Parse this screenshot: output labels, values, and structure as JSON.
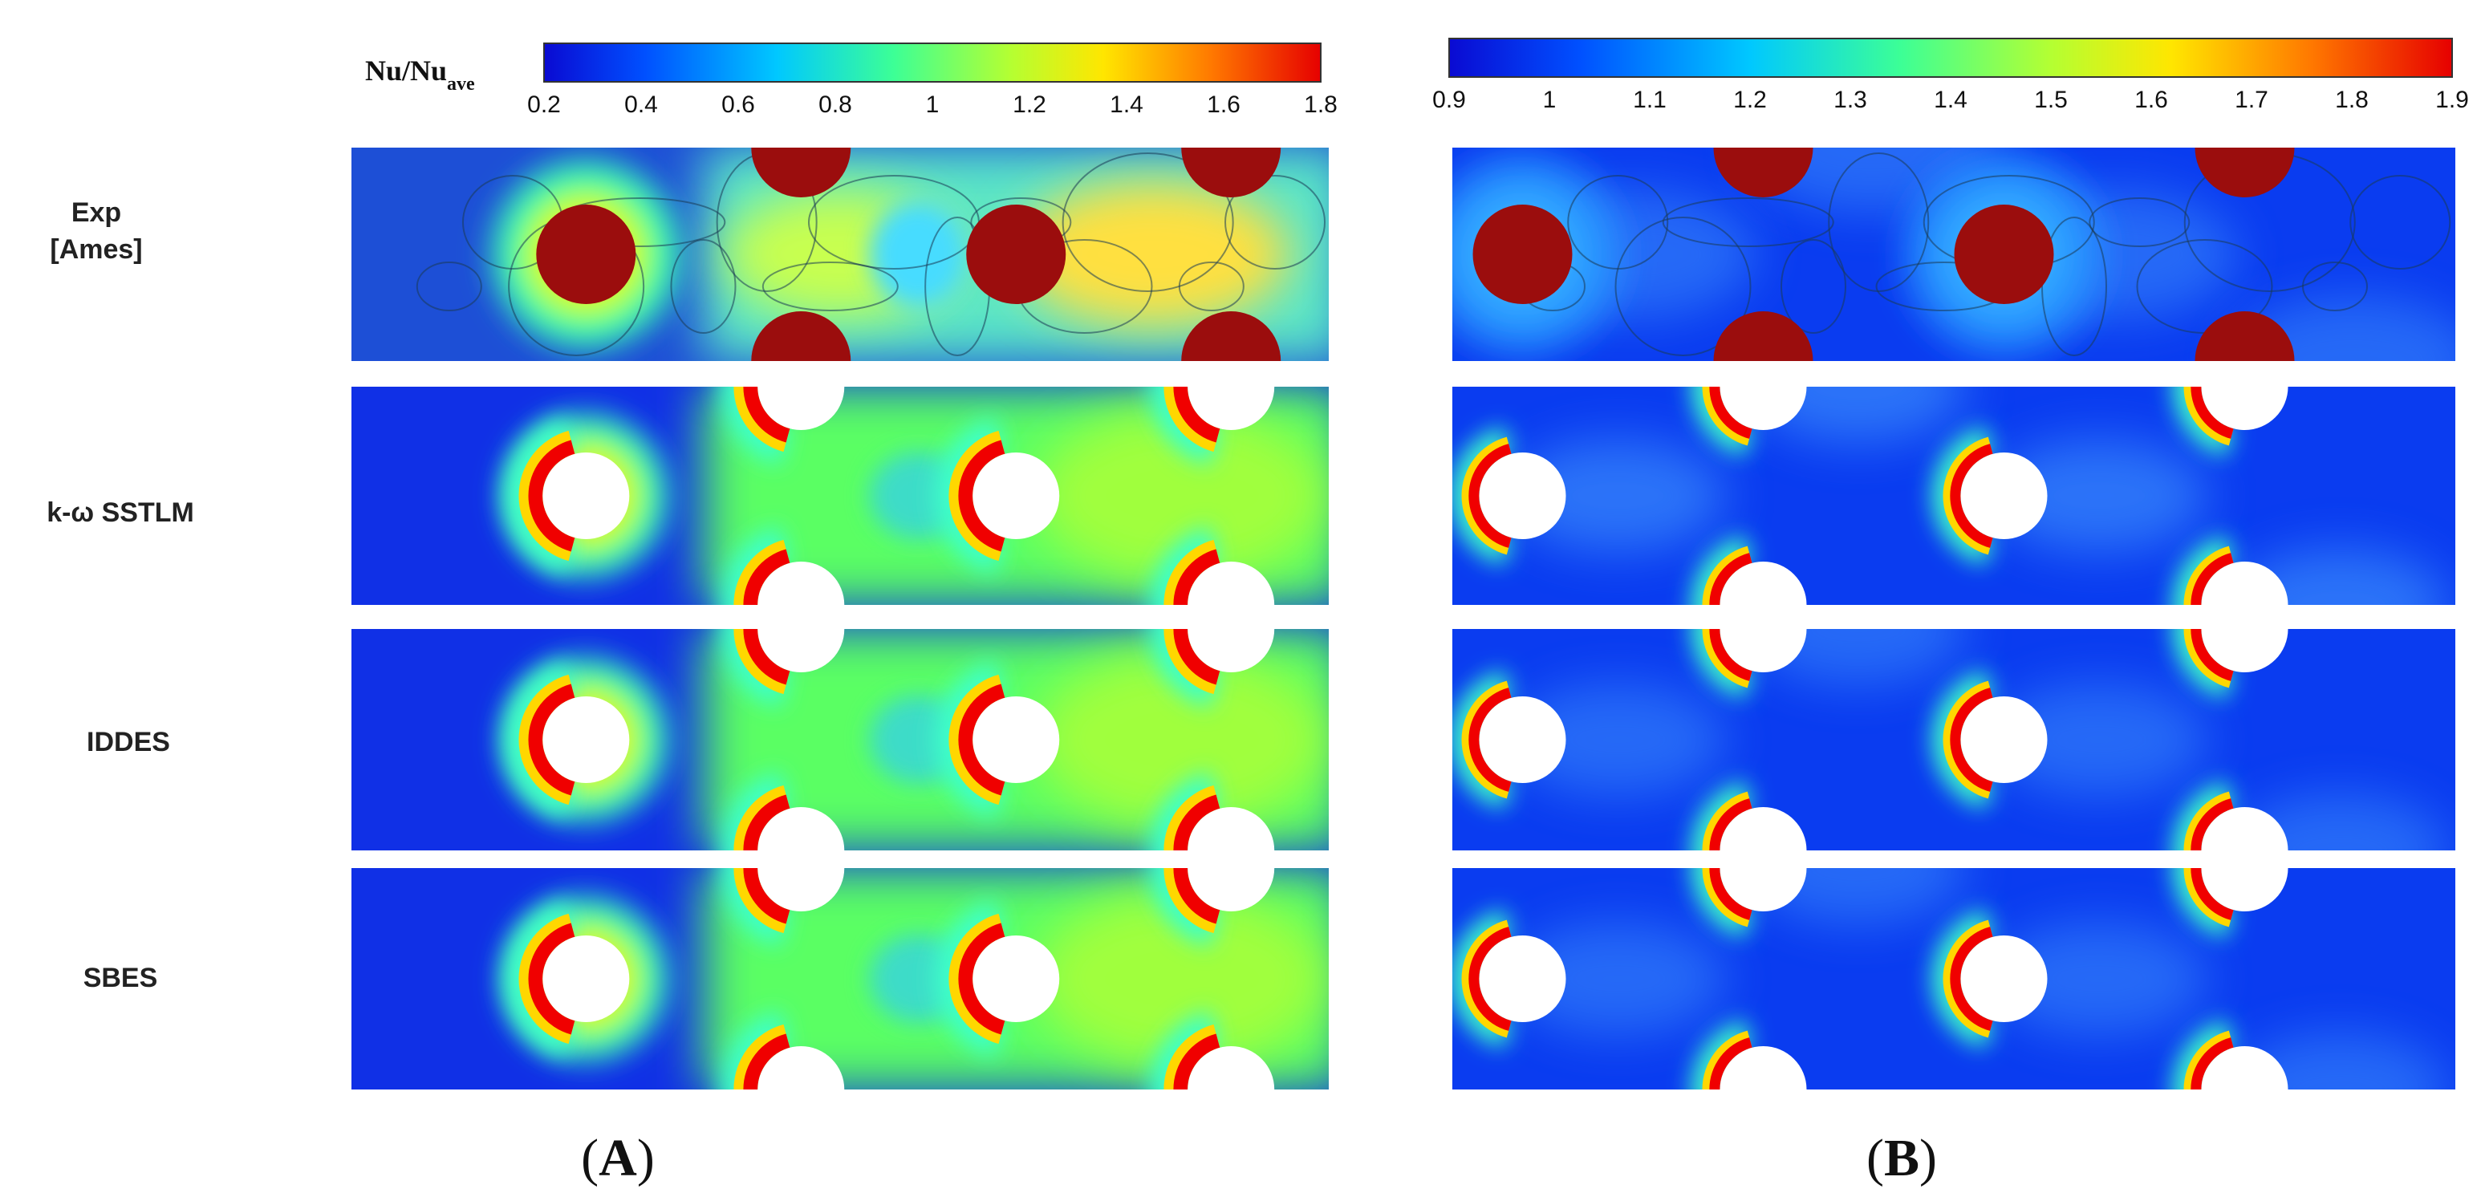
{
  "figure": {
    "colorbar_title_main": "Nu/Nu",
    "colorbar_title_sub": "ave",
    "row_labels": [
      {
        "line1": "Exp",
        "line2": "[Ames]"
      },
      {
        "line1": "k-ω SSTLM",
        "line2": ""
      },
      {
        "line1": "IDDES",
        "line2": ""
      },
      {
        "line1": "SBES",
        "line2": ""
      }
    ],
    "panels": [
      {
        "letter": "A",
        "ticks": [
          "0.2",
          "0.4",
          "0.6",
          "0.8",
          "1",
          "1.2",
          "1.4",
          "1.6",
          "1.8"
        ]
      },
      {
        "letter": "B",
        "ticks": [
          "0.9",
          "1",
          "1.1",
          "1.2",
          "1.3",
          "1.4",
          "1.5",
          "1.6",
          "1.7",
          "1.8",
          "1.9"
        ]
      }
    ]
  },
  "colors": {
    "jet": [
      "#0000b4",
      "#0050ff",
      "#00c8ff",
      "#3cff96",
      "#c8ff28",
      "#ffdc00",
      "#ff7800",
      "#e60000",
      "#960000"
    ],
    "pin_exp": "#9b0d0d",
    "pin_cfd": "#ffffff",
    "separator": "#ffffff"
  }
}
